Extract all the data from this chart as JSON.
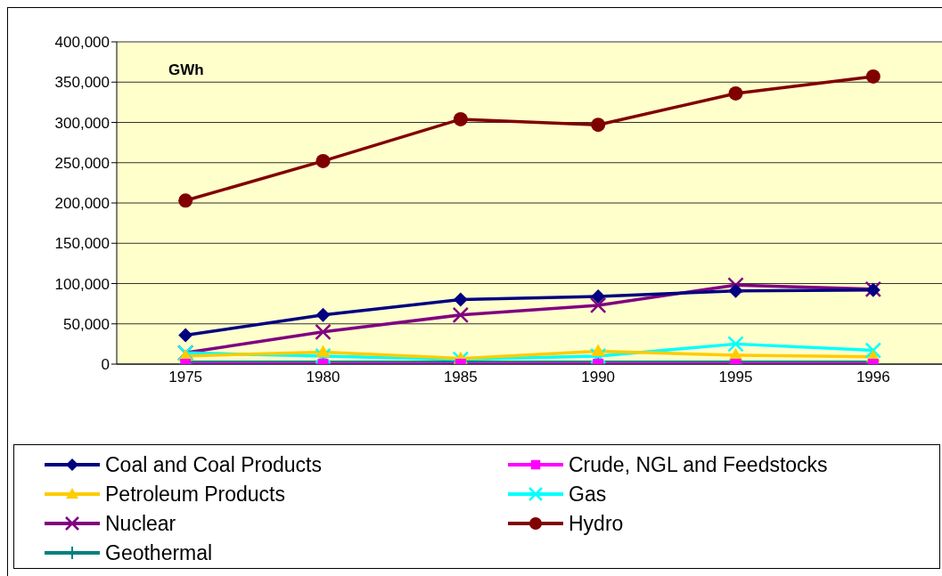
{
  "chart_data": {
    "type": "line",
    "annotations": [
      "GWh"
    ],
    "categories": [
      "1975",
      "1980",
      "1985",
      "1990",
      "1995",
      "1996"
    ],
    "series": [
      {
        "name": "Coal and Coal Products",
        "color": "#000080",
        "marker": "diamond",
        "values": [
          36000,
          61000,
          80000,
          84000,
          91000,
          92000
        ]
      },
      {
        "name": "Crude, NGL and Feedstocks",
        "color": "#ff00ff",
        "marker": "square",
        "values": [
          0,
          0,
          0,
          0,
          0,
          0
        ]
      },
      {
        "name": "Petroleum Products",
        "color": "#ffcc00",
        "marker": "triangle",
        "values": [
          10000,
          15000,
          7000,
          16000,
          11000,
          9000
        ]
      },
      {
        "name": "Gas",
        "color": "#00ffff",
        "marker": "cross",
        "values": [
          14000,
          10000,
          6000,
          10000,
          25000,
          17000
        ]
      },
      {
        "name": "Nuclear",
        "color": "#800080",
        "marker": "cross",
        "values": [
          14000,
          40000,
          61000,
          73000,
          98000,
          93000
        ]
      },
      {
        "name": "Hydro",
        "color": "#800000",
        "marker": "circle",
        "values": [
          203000,
          252000,
          304000,
          297000,
          336000,
          357000
        ]
      },
      {
        "name": "Geothermal",
        "color": "#008080",
        "marker": "plus",
        "values": [
          0,
          0,
          0,
          0,
          0,
          0
        ]
      }
    ],
    "ylim": [
      0,
      400000
    ],
    "yticks": [
      0,
      {
        "value": 50000,
        "label": "50,000"
      },
      {
        "value": 100000,
        "label": "100,000"
      },
      {
        "value": 150000,
        "label": "150,000"
      },
      {
        "value": 200000,
        "label": "200,000"
      },
      {
        "value": 250000,
        "label": "250,000"
      },
      {
        "value": 300000,
        "label": "300,000"
      },
      {
        "value": 350000,
        "label": "350,000"
      },
      {
        "value": 400000,
        "label": "400,000"
      }
    ],
    "grid": "y",
    "legend": "bottom"
  }
}
